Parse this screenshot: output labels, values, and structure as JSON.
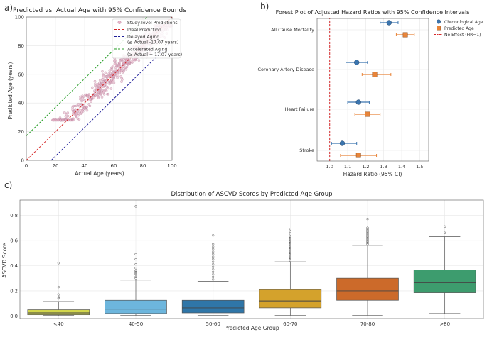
{
  "chart_data": [
    {
      "panel_label": "a)",
      "type": "scatter",
      "title": "Predicted vs. Actual Age with 95% Confidence Bounds",
      "xlabel": "Actual Age (years)",
      "ylabel": "Predicted Age (years)",
      "xlim": [
        0,
        100
      ],
      "ylim": [
        0,
        100
      ],
      "xticks": [
        0,
        20,
        40,
        60,
        80,
        100
      ],
      "yticks": [
        0,
        20,
        40,
        60,
        80,
        100
      ],
      "scatter_summary": {
        "x_range": [
          18,
          100
        ],
        "pred_min": 28,
        "pred_max": 94,
        "slope": 1.0,
        "spread_sd": 6.5,
        "n_points_drawn": 650
      },
      "lines": [
        {
          "name": "Ideal Prediction",
          "offset": 0,
          "color": "#d62728"
        },
        {
          "name": "Delayed Aging (≤ Actual -17.07 years)",
          "offset": -17.07,
          "color": "#1f1f99"
        },
        {
          "name": "Accelerated Aging (≥ Actual + 17.07 years)",
          "offset": 17.07,
          "color": "#2ca02c"
        }
      ],
      "legend": [
        {
          "label": "Study-level Predictions",
          "kind": "marker"
        },
        {
          "label": "Ideal Prediction",
          "kind": "line",
          "color": "#d62728"
        },
        {
          "label": "Delayed Aging",
          "label2": "(≤ Actual -17.07 years)",
          "kind": "line",
          "color": "#1f1f99"
        },
        {
          "label": "Accelerated Aging",
          "label2": "(≥ Actual + 17.07 years)",
          "kind": "line",
          "color": "#2ca02c"
        }
      ],
      "point_color": "#e8b4c8"
    },
    {
      "panel_label": "b)",
      "type": "forest",
      "title": "Forest Plot of Adjusted Hazard Ratios with 95% Confidence Intervals",
      "xlabel": "Hazard Ratio (95% CI)",
      "xlim": [
        0.93,
        1.55
      ],
      "xticks": [
        1.0,
        1.1,
        1.2,
        1.3,
        1.4,
        1.5
      ],
      "categories": [
        "All Cause Mortality",
        "Coronary Artery Disease",
        "Heart Failure",
        "Stroke"
      ],
      "series": [
        {
          "name": "Chronological Age",
          "color": "#3b75af",
          "marker": "circle",
          "values": [
            1.33,
            1.15,
            1.16,
            1.07
          ],
          "ci_low": [
            1.28,
            1.09,
            1.1,
            1.01
          ],
          "ci_high": [
            1.38,
            1.21,
            1.22,
            1.15
          ]
        },
        {
          "name": "Predicted Age",
          "color": "#e8853a",
          "marker": "square",
          "values": [
            1.42,
            1.25,
            1.21,
            1.16
          ],
          "ci_low": [
            1.37,
            1.18,
            1.14,
            1.06
          ],
          "ci_high": [
            1.47,
            1.34,
            1.28,
            1.26
          ]
        }
      ],
      "reference": {
        "name": "No Effect (HR=1)",
        "value": 1.0,
        "color": "#d62728"
      }
    },
    {
      "panel_label": "c)",
      "type": "box",
      "title": "Distribution of ASCVD Scores by Predicted Age Group",
      "xlabel": "Predicted Age Group",
      "ylabel": "ASCVD Score",
      "ylim": [
        -0.02,
        0.92
      ],
      "yticks": [
        0.0,
        0.2,
        0.4,
        0.6,
        0.8
      ],
      "categories": [
        "<40",
        "40-50",
        "50-60",
        "60-70",
        "70-80",
        ">80"
      ],
      "colors": [
        "#d2d64c",
        "#6db6dd",
        "#2f76a8",
        "#d4a22c",
        "#cc6a2a",
        "#3d9c6e"
      ],
      "boxes": [
        {
          "min": 0.005,
          "q1": 0.01,
          "median": 0.025,
          "q3": 0.05,
          "max": 0.115,
          "outliers": [
            0.14,
            0.15,
            0.17,
            0.23,
            0.42
          ]
        },
        {
          "min": 0.005,
          "q1": 0.02,
          "median": 0.055,
          "q3": 0.125,
          "max": 0.285,
          "outliers": [
            0.3,
            0.31,
            0.33,
            0.34,
            0.35,
            0.36,
            0.38,
            0.41,
            0.45,
            0.49,
            0.87
          ]
        },
        {
          "min": 0.005,
          "q1": 0.025,
          "median": 0.065,
          "q3": 0.125,
          "max": 0.275,
          "outliers": [
            0.29,
            0.31,
            0.33,
            0.35,
            0.37,
            0.39,
            0.41,
            0.43,
            0.45,
            0.47,
            0.49,
            0.51,
            0.53,
            0.55,
            0.57,
            0.64
          ]
        },
        {
          "min": 0.005,
          "q1": 0.065,
          "median": 0.12,
          "q3": 0.21,
          "max": 0.43,
          "outliers": [
            0.44,
            0.45,
            0.46,
            0.47,
            0.48,
            0.49,
            0.5,
            0.51,
            0.52,
            0.53,
            0.54,
            0.55,
            0.56,
            0.57,
            0.58,
            0.59,
            0.6,
            0.61,
            0.62,
            0.63,
            0.65,
            0.67,
            0.69
          ]
        },
        {
          "min": 0.005,
          "q1": 0.125,
          "median": 0.2,
          "q3": 0.3,
          "max": 0.56,
          "outliers": [
            0.57,
            0.58,
            0.59,
            0.6,
            0.61,
            0.62,
            0.63,
            0.64,
            0.65,
            0.66,
            0.67,
            0.68,
            0.69,
            0.7,
            0.77
          ]
        },
        {
          "min": 0.02,
          "q1": 0.185,
          "median": 0.265,
          "q3": 0.365,
          "max": 0.63,
          "outliers": [
            0.66,
            0.71
          ]
        }
      ]
    }
  ]
}
